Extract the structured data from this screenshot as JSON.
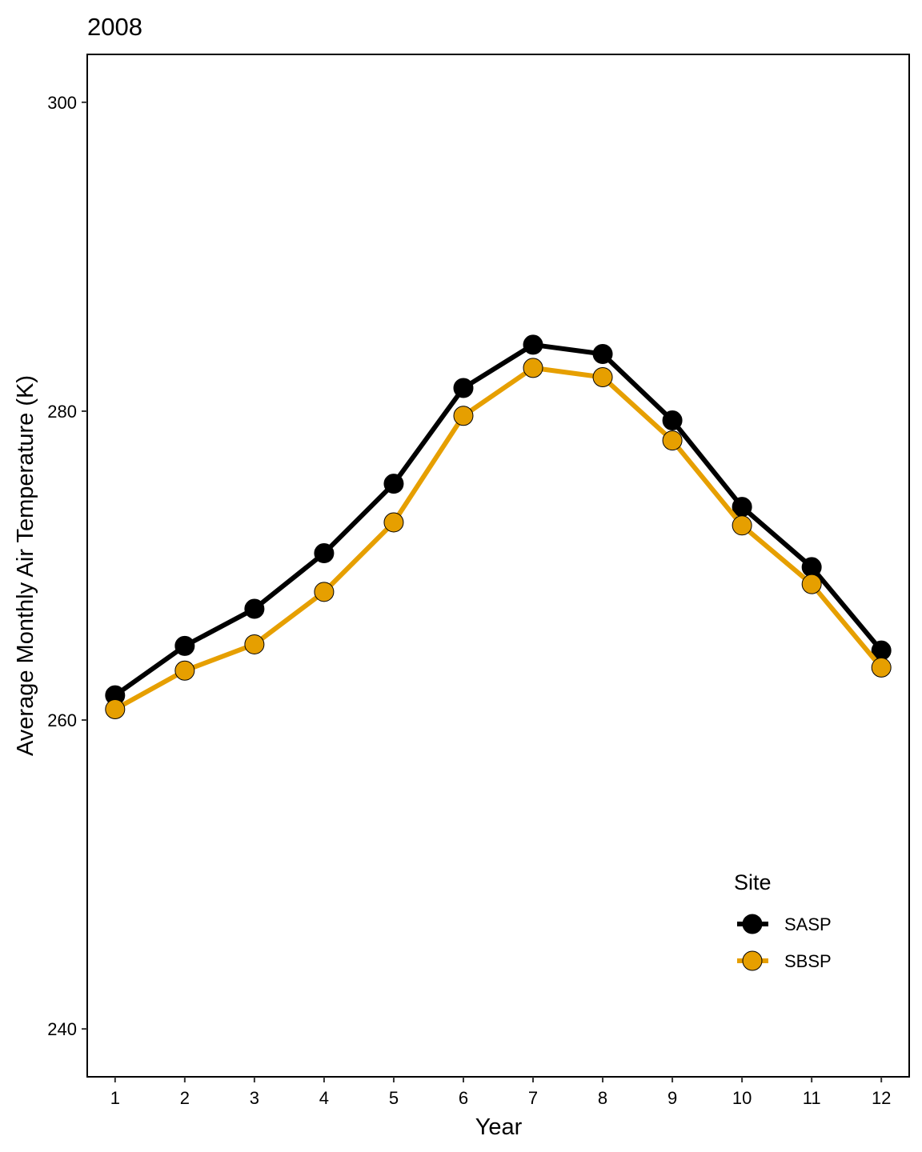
{
  "chart_data": {
    "type": "line",
    "title": "2008",
    "xlabel": "Year",
    "ylabel": "Average Monthly Air Temperature (K)",
    "x": [
      1,
      2,
      3,
      4,
      5,
      6,
      7,
      8,
      9,
      10,
      11,
      12
    ],
    "xticks": [
      "1",
      "2",
      "3",
      "4",
      "5",
      "6",
      "7",
      "8",
      "9",
      "10",
      "11",
      "12"
    ],
    "yticks": [
      "240",
      "260",
      "280",
      "300"
    ],
    "ylim": [
      236.9,
      303.1
    ],
    "xlim": [
      0.6,
      12.4
    ],
    "grid": false,
    "legend": {
      "title": "Site",
      "position": "bottom-right"
    },
    "series": [
      {
        "name": "SASP",
        "color": "#000000",
        "values": [
          261.6,
          264.8,
          267.2,
          270.8,
          275.3,
          281.5,
          284.3,
          283.7,
          279.4,
          273.8,
          269.9,
          264.5
        ]
      },
      {
        "name": "SBSP",
        "color": "#E69F00",
        "values": [
          260.7,
          263.2,
          264.9,
          268.3,
          272.8,
          279.7,
          282.8,
          282.2,
          278.1,
          272.6,
          268.8,
          263.4
        ]
      }
    ]
  }
}
